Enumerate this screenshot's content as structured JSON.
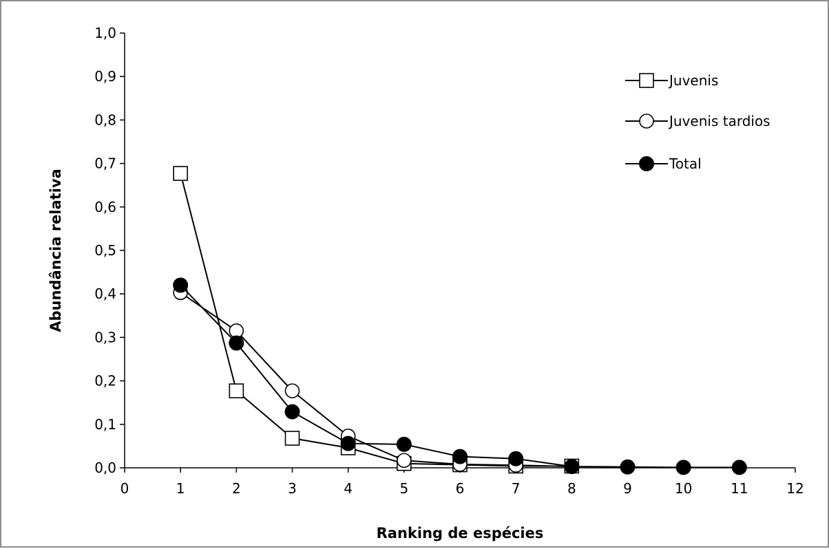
{
  "chart_data": {
    "type": "line",
    "title": "",
    "xlabel": "Ranking de espécies",
    "ylabel": "Abundância relativa",
    "xlim": [
      0,
      12
    ],
    "ylim": [
      0,
      1.0
    ],
    "x_ticks": [
      "0",
      "1",
      "2",
      "3",
      "4",
      "5",
      "6",
      "7",
      "8",
      "9",
      "10",
      "11",
      "12"
    ],
    "y_ticks": [
      "0,0",
      "0,1",
      "0,2",
      "0,3",
      "0,4",
      "0,5",
      "0,6",
      "0,7",
      "0,8",
      "0,9",
      "1,0"
    ],
    "grid": false,
    "legend_position": "top-right",
    "series": [
      {
        "name": "Juvenis",
        "marker": "open-square",
        "color": "#000000",
        "x": [
          1,
          2,
          3,
          4,
          5,
          6,
          7,
          8
        ],
        "y": [
          0.677,
          0.177,
          0.068,
          0.046,
          0.01,
          0.007,
          0.004,
          0.004
        ]
      },
      {
        "name": "Juvenis tardios",
        "marker": "open-circle",
        "color": "#000000",
        "x": [
          1,
          2,
          3,
          4,
          5,
          6,
          7,
          8
        ],
        "y": [
          0.403,
          0.315,
          0.177,
          0.073,
          0.017,
          0.008,
          0.006,
          0.003
        ]
      },
      {
        "name": "Total",
        "marker": "filled-circle",
        "color": "#000000",
        "x": [
          1,
          2,
          3,
          4,
          5,
          6,
          7,
          8,
          9,
          10,
          11
        ],
        "y": [
          0.42,
          0.287,
          0.129,
          0.056,
          0.054,
          0.026,
          0.021,
          0.003,
          0.002,
          0.001,
          0.001
        ]
      }
    ]
  }
}
